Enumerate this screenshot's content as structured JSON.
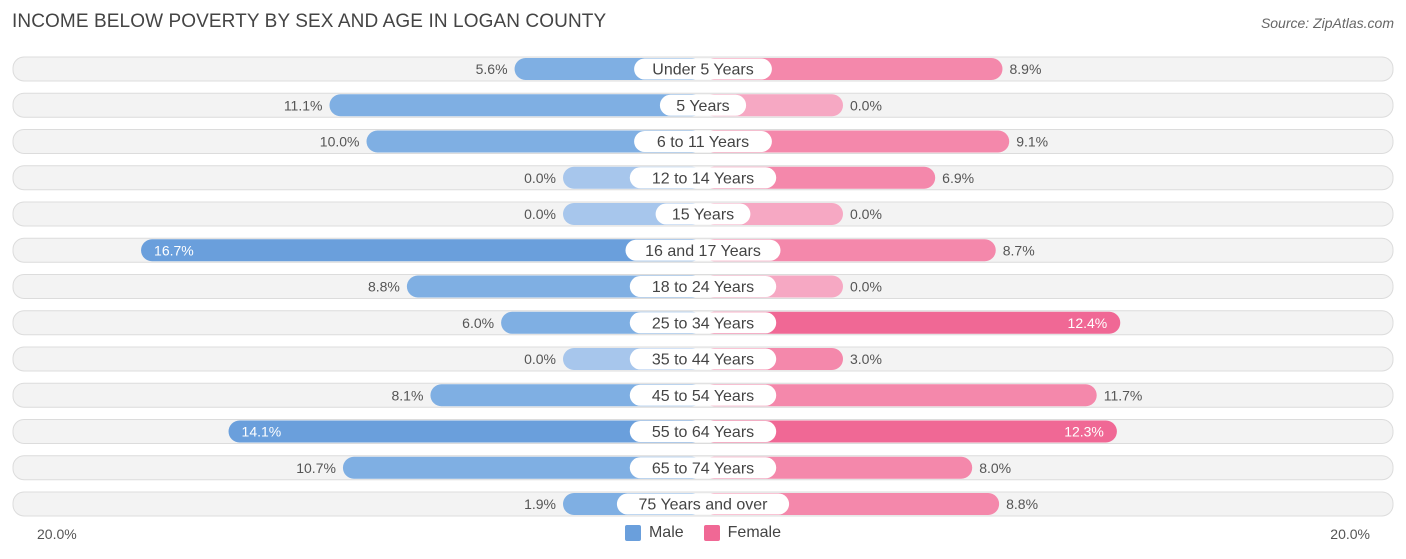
{
  "title": "INCOME BELOW POVERTY BY SEX AND AGE IN LOGAN COUNTY",
  "source": "Source: ZipAtlas.com",
  "colors": {
    "male_strong": "#6a9fdc",
    "male_light": "#a7c6ec",
    "female_strong": "#f06895",
    "female_light": "#f6a8c3",
    "row_bg": "#eeeeee",
    "row_border": "#dcdcdc"
  },
  "chart_data": {
    "type": "bar",
    "orientation": "horizontal-diverging",
    "title": "INCOME BELOW POVERTY BY SEX AND AGE IN LOGAN COUNTY",
    "axis_left_label": "20.0%",
    "axis_right_label": "20.0%",
    "xlim": [
      0,
      20
    ],
    "categories": [
      "Under 5 Years",
      "5 Years",
      "6 to 11 Years",
      "12 to 14 Years",
      "15 Years",
      "16 and 17 Years",
      "18 to 24 Years",
      "25 to 34 Years",
      "35 to 44 Years",
      "45 to 54 Years",
      "55 to 64 Years",
      "65 to 74 Years",
      "75 Years and over"
    ],
    "series": [
      {
        "name": "Male",
        "values": [
          5.6,
          11.1,
          10.0,
          0.0,
          0.0,
          16.7,
          8.8,
          6.0,
          0.0,
          8.1,
          14.1,
          10.7,
          1.9
        ],
        "labels": [
          "5.6%",
          "11.1%",
          "10.0%",
          "0.0%",
          "0.0%",
          "16.7%",
          "8.8%",
          "6.0%",
          "0.0%",
          "8.1%",
          "14.1%",
          "10.7%",
          "1.9%"
        ]
      },
      {
        "name": "Female",
        "values": [
          8.9,
          0.0,
          9.1,
          6.9,
          0.0,
          8.7,
          0.0,
          12.4,
          3.0,
          11.7,
          12.3,
          8.0,
          8.8
        ],
        "labels": [
          "8.9%",
          "0.0%",
          "9.1%",
          "6.9%",
          "0.0%",
          "8.7%",
          "0.0%",
          "12.4%",
          "3.0%",
          "11.7%",
          "12.3%",
          "8.0%",
          "8.8%"
        ]
      }
    ],
    "legend": [
      "Male",
      "Female"
    ],
    "legend_position": "bottom-center"
  }
}
